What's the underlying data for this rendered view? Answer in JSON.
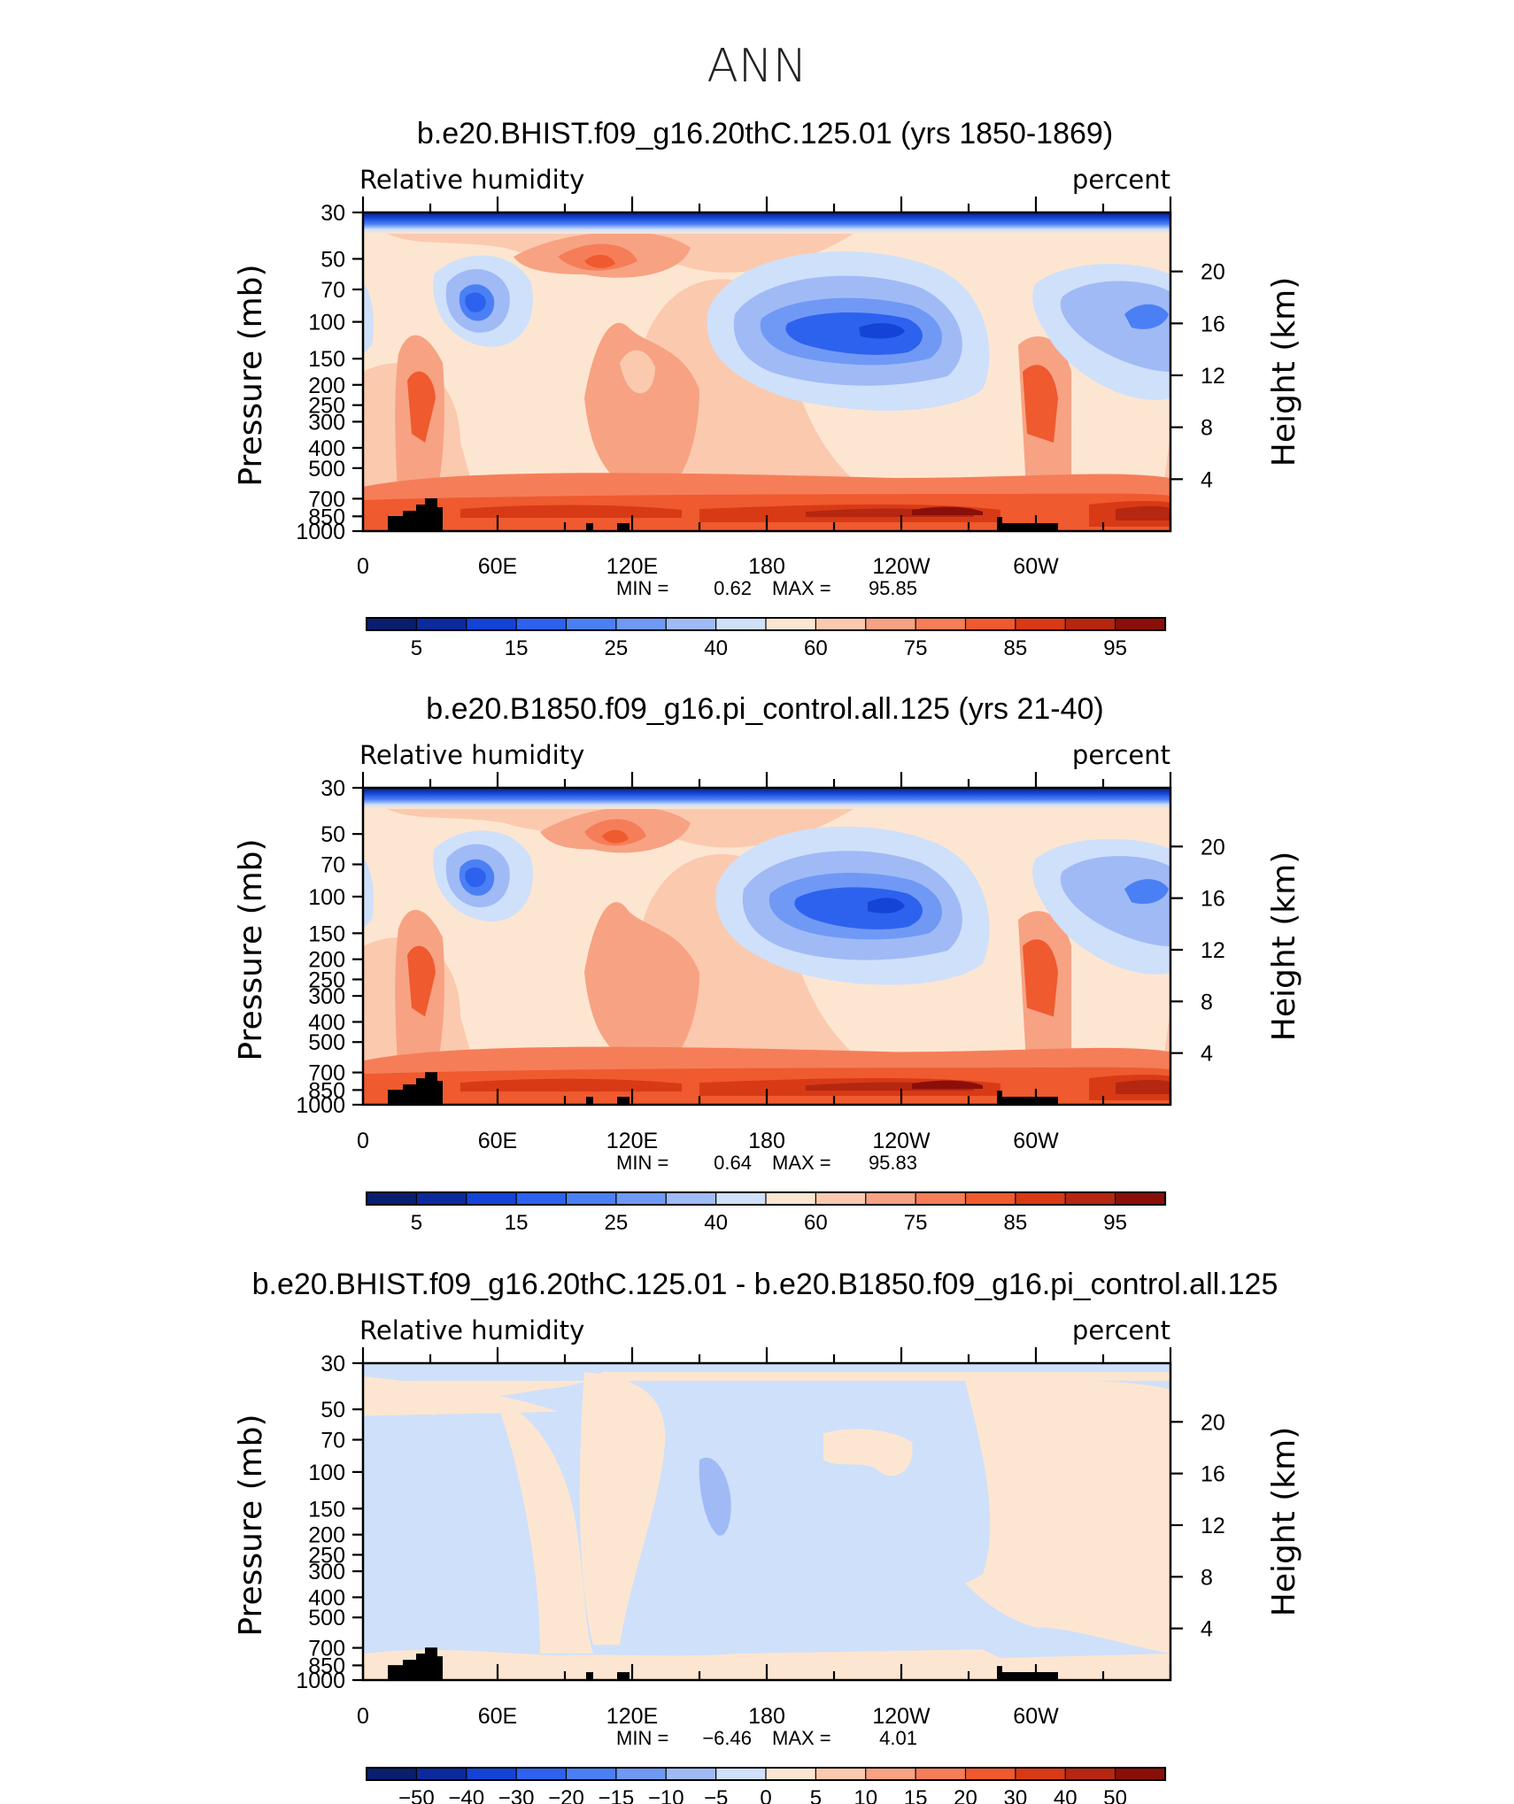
{
  "figure": {
    "title": "ANN"
  },
  "chart_data": [
    {
      "type": "contour",
      "title": "b.e20.BHIST.f09_g16.20thC.125.01 (yrs 1850-1869)",
      "variable_label": "Relative humidity",
      "units_label": "percent",
      "ylabel_left": "Pressure (mb)",
      "ylabel_right": "Height (km)",
      "x_ticks": [
        "0",
        "60E",
        "120E",
        "180",
        "120W",
        "60W"
      ],
      "x_tick_lons": [
        0,
        60,
        120,
        180,
        240,
        300
      ],
      "xlim": [
        0,
        360
      ],
      "pressure_ticks": [
        "30",
        "50",
        "70",
        "100",
        "150",
        "200",
        "250",
        "300",
        "400",
        "500",
        "700",
        "850",
        "1000"
      ],
      "height_ticks": [
        "20",
        "16",
        "12",
        "8",
        "4"
      ],
      "height_tick_values": [
        20,
        16,
        12,
        8,
        4
      ],
      "ylim_mb": [
        1000,
        30
      ],
      "min_label": "MIN =",
      "min_value": "0.62",
      "max_label": "MAX =",
      "max_value": "95.85",
      "colorbar_labels": [
        "5",
        "15",
        "25",
        "40",
        "60",
        "75",
        "85",
        "95"
      ],
      "contour_levels": [
        5,
        10,
        15,
        20,
        25,
        30,
        40,
        50,
        60,
        70,
        75,
        80,
        85,
        90,
        95
      ]
    },
    {
      "type": "contour",
      "title": "b.e20.B1850.f09_g16.pi_control.all.125 (yrs 21-40)",
      "variable_label": "Relative humidity",
      "units_label": "percent",
      "ylabel_left": "Pressure (mb)",
      "ylabel_right": "Height (km)",
      "x_ticks": [
        "0",
        "60E",
        "120E",
        "180",
        "120W",
        "60W"
      ],
      "x_tick_lons": [
        0,
        60,
        120,
        180,
        240,
        300
      ],
      "xlim": [
        0,
        360
      ],
      "pressure_ticks": [
        "30",
        "50",
        "70",
        "100",
        "150",
        "200",
        "250",
        "300",
        "400",
        "500",
        "700",
        "850",
        "1000"
      ],
      "height_ticks": [
        "20",
        "16",
        "12",
        "8",
        "4"
      ],
      "height_tick_values": [
        20,
        16,
        12,
        8,
        4
      ],
      "ylim_mb": [
        1000,
        30
      ],
      "min_label": "MIN =",
      "min_value": "0.64",
      "max_label": "MAX =",
      "max_value": "95.83",
      "colorbar_labels": [
        "5",
        "15",
        "25",
        "40",
        "60",
        "75",
        "85",
        "95"
      ],
      "contour_levels": [
        5,
        10,
        15,
        20,
        25,
        30,
        40,
        50,
        60,
        70,
        75,
        80,
        85,
        90,
        95
      ]
    },
    {
      "type": "contour",
      "title": "b.e20.BHIST.f09_g16.20thC.125.01 - b.e20.B1850.f09_g16.pi_control.all.125",
      "variable_label": "Relative humidity",
      "units_label": "percent",
      "ylabel_left": "Pressure (mb)",
      "ylabel_right": "Height (km)",
      "x_ticks": [
        "0",
        "60E",
        "120E",
        "180",
        "120W",
        "60W"
      ],
      "x_tick_lons": [
        0,
        60,
        120,
        180,
        240,
        300
      ],
      "xlim": [
        0,
        360
      ],
      "pressure_ticks": [
        "30",
        "50",
        "70",
        "100",
        "150",
        "200",
        "250",
        "300",
        "400",
        "500",
        "700",
        "850",
        "1000"
      ],
      "height_ticks": [
        "20",
        "16",
        "12",
        "8",
        "4"
      ],
      "height_tick_values": [
        20,
        16,
        12,
        8,
        4
      ],
      "ylim_mb": [
        1000,
        30
      ],
      "min_label": "MIN =",
      "min_value": "−6.46",
      "max_label": "MAX =",
      "max_value": "4.01",
      "colorbar_labels": [
        "−50",
        "−40",
        "−30",
        "−20",
        "−15",
        "−10",
        "−5",
        "0",
        "5",
        "10",
        "15",
        "20",
        "30",
        "40",
        "50"
      ],
      "contour_levels": [
        -50,
        -40,
        -30,
        -20,
        -15,
        -10,
        -5,
        0,
        5,
        10,
        15,
        20,
        30,
        40,
        50
      ]
    }
  ],
  "colors": {
    "abs_palette": [
      "#0a1e6e",
      "#0b2a9c",
      "#1444d6",
      "#2d62ef",
      "#4b80f5",
      "#7099f5",
      "#a0baf6",
      "#cfe0fa",
      "#fde6d1",
      "#fbc9ae",
      "#f7a283",
      "#f57e59",
      "#ef5a2f",
      "#d83a16",
      "#b52710",
      "#8a0f0a"
    ],
    "diff_palette": [
      "#0a1e6e",
      "#0b2a9c",
      "#1444d6",
      "#2d62ef",
      "#4b80f5",
      "#7099f5",
      "#a0baf6",
      "#cfe0fa",
      "#fde6d1",
      "#fbc9ae",
      "#f7a283",
      "#f57e59",
      "#ef5a2f",
      "#d83a16",
      "#b52710",
      "#8a0f0a"
    ],
    "topography": "#000000"
  }
}
